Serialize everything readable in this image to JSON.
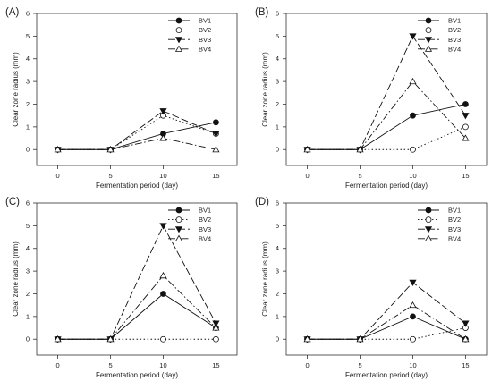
{
  "chart_data": [
    {
      "type": "line",
      "panel_label": "(A)",
      "xlabel": "Fermentation period (day)",
      "ylabel": "Clear zone radius (mm)",
      "x": [
        0,
        5,
        10,
        15
      ],
      "xlim": [
        -2,
        17
      ],
      "ylim": [
        -0.7,
        6
      ],
      "xticks": [
        0,
        5,
        10,
        15
      ],
      "yticks": [
        0,
        1,
        2,
        3,
        4,
        5,
        6
      ],
      "legend_position": "top-right",
      "series": [
        {
          "name": "BV1",
          "values": [
            0,
            0,
            0.7,
            1.2
          ]
        },
        {
          "name": "BV2",
          "values": [
            0,
            0,
            1.5,
            0.7
          ]
        },
        {
          "name": "BV3",
          "values": [
            0,
            0,
            1.7,
            0.7
          ]
        },
        {
          "name": "BV4",
          "values": [
            0,
            0,
            0.5,
            0
          ]
        }
      ]
    },
    {
      "type": "line",
      "panel_label": "(B)",
      "xlabel": "Fermentation period (day)",
      "ylabel": "Clear zone radius (mm)",
      "x": [
        0,
        5,
        10,
        15
      ],
      "xlim": [
        -2,
        17
      ],
      "ylim": [
        -0.7,
        6
      ],
      "xticks": [
        0,
        5,
        10,
        15
      ],
      "yticks": [
        0,
        1,
        2,
        3,
        4,
        5,
        6
      ],
      "legend_position": "top-right",
      "series": [
        {
          "name": "BV1",
          "values": [
            0,
            0,
            1.5,
            2
          ]
        },
        {
          "name": "BV2",
          "values": [
            0,
            0,
            0,
            1
          ]
        },
        {
          "name": "BV3",
          "values": [
            0,
            0,
            5,
            1.5
          ]
        },
        {
          "name": "BV4",
          "values": [
            0,
            0,
            3,
            0.5
          ]
        }
      ]
    },
    {
      "type": "line",
      "panel_label": "(C)",
      "xlabel": "Fermentation period (day)",
      "ylabel": "Clear zone radius (mm)",
      "x": [
        0,
        5,
        10,
        15
      ],
      "xlim": [
        -2,
        17
      ],
      "ylim": [
        -0.7,
        6
      ],
      "xticks": [
        0,
        5,
        10,
        15
      ],
      "yticks": [
        0,
        1,
        2,
        3,
        4,
        5,
        6
      ],
      "legend_position": "top-right",
      "series": [
        {
          "name": "BV1",
          "values": [
            0,
            0,
            2,
            0.5
          ]
        },
        {
          "name": "BV2",
          "values": [
            0,
            0,
            0,
            0
          ]
        },
        {
          "name": "BV3",
          "values": [
            0,
            0,
            5,
            0.7
          ]
        },
        {
          "name": "BV4",
          "values": [
            0,
            0,
            2.8,
            0.5
          ]
        }
      ]
    },
    {
      "type": "line",
      "panel_label": "(D)",
      "xlabel": "Fermentation period (day)",
      "ylabel": "Clear zone radius (mm)",
      "x": [
        0,
        5,
        10,
        15
      ],
      "xlim": [
        -2,
        17
      ],
      "ylim": [
        -0.7,
        6
      ],
      "xticks": [
        0,
        5,
        10,
        15
      ],
      "yticks": [
        0,
        1,
        2,
        3,
        4,
        5,
        6
      ],
      "legend_position": "top-right",
      "series": [
        {
          "name": "BV1",
          "values": [
            0,
            0,
            1,
            0
          ]
        },
        {
          "name": "BV2",
          "values": [
            0,
            0,
            0,
            0.5
          ]
        },
        {
          "name": "BV3",
          "values": [
            0,
            0,
            2.5,
            0.7
          ]
        },
        {
          "name": "BV4",
          "values": [
            0,
            0,
            1.5,
            0
          ]
        }
      ]
    }
  ]
}
